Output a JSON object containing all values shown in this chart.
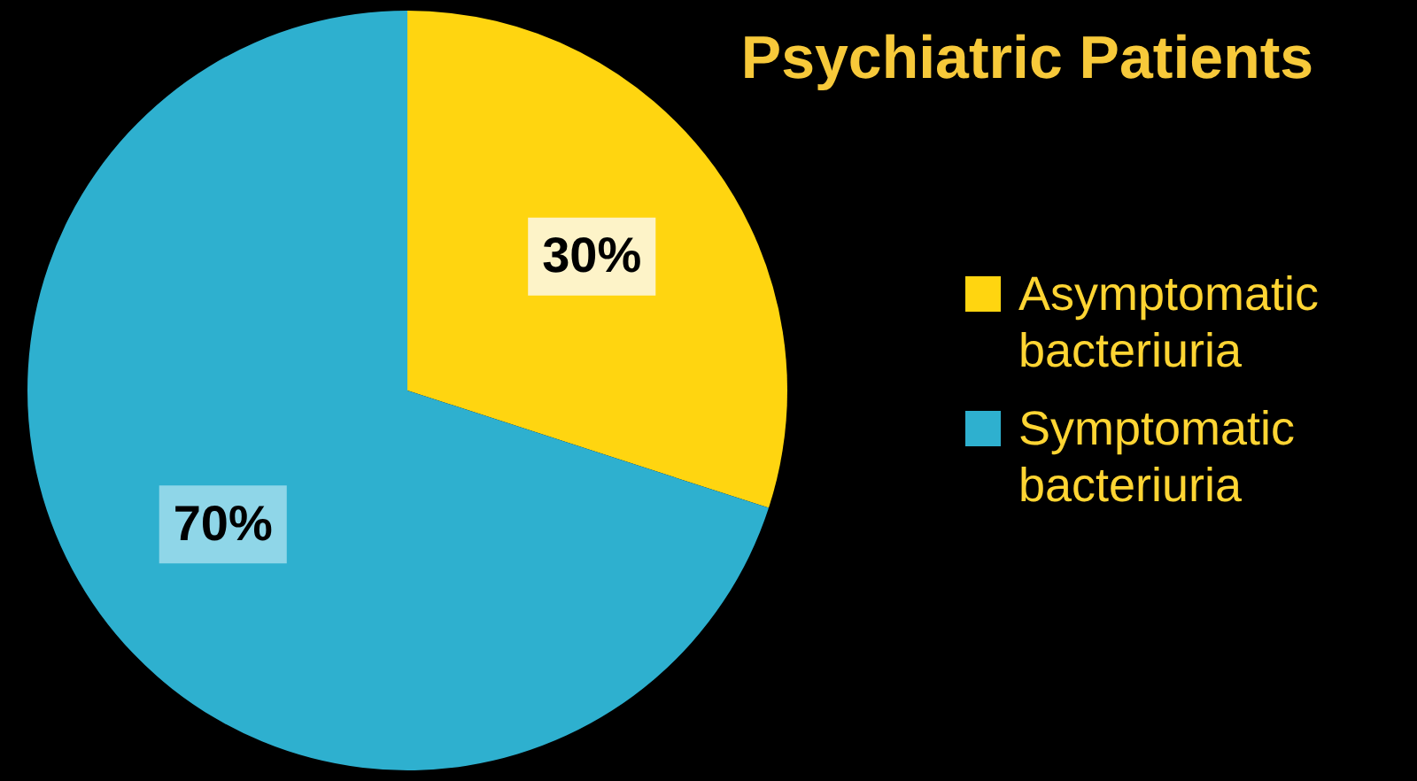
{
  "chart_data": {
    "type": "pie",
    "title": "Psychiatric Patients",
    "categories": [
      "Asymptomatic bacteriuria",
      "Symptomatic bacteriuria"
    ],
    "values": [
      30,
      70
    ],
    "value_labels": [
      "30%",
      "70%"
    ],
    "colors": [
      "#ffd510",
      "#2eb0cf"
    ],
    "legend": "right"
  }
}
